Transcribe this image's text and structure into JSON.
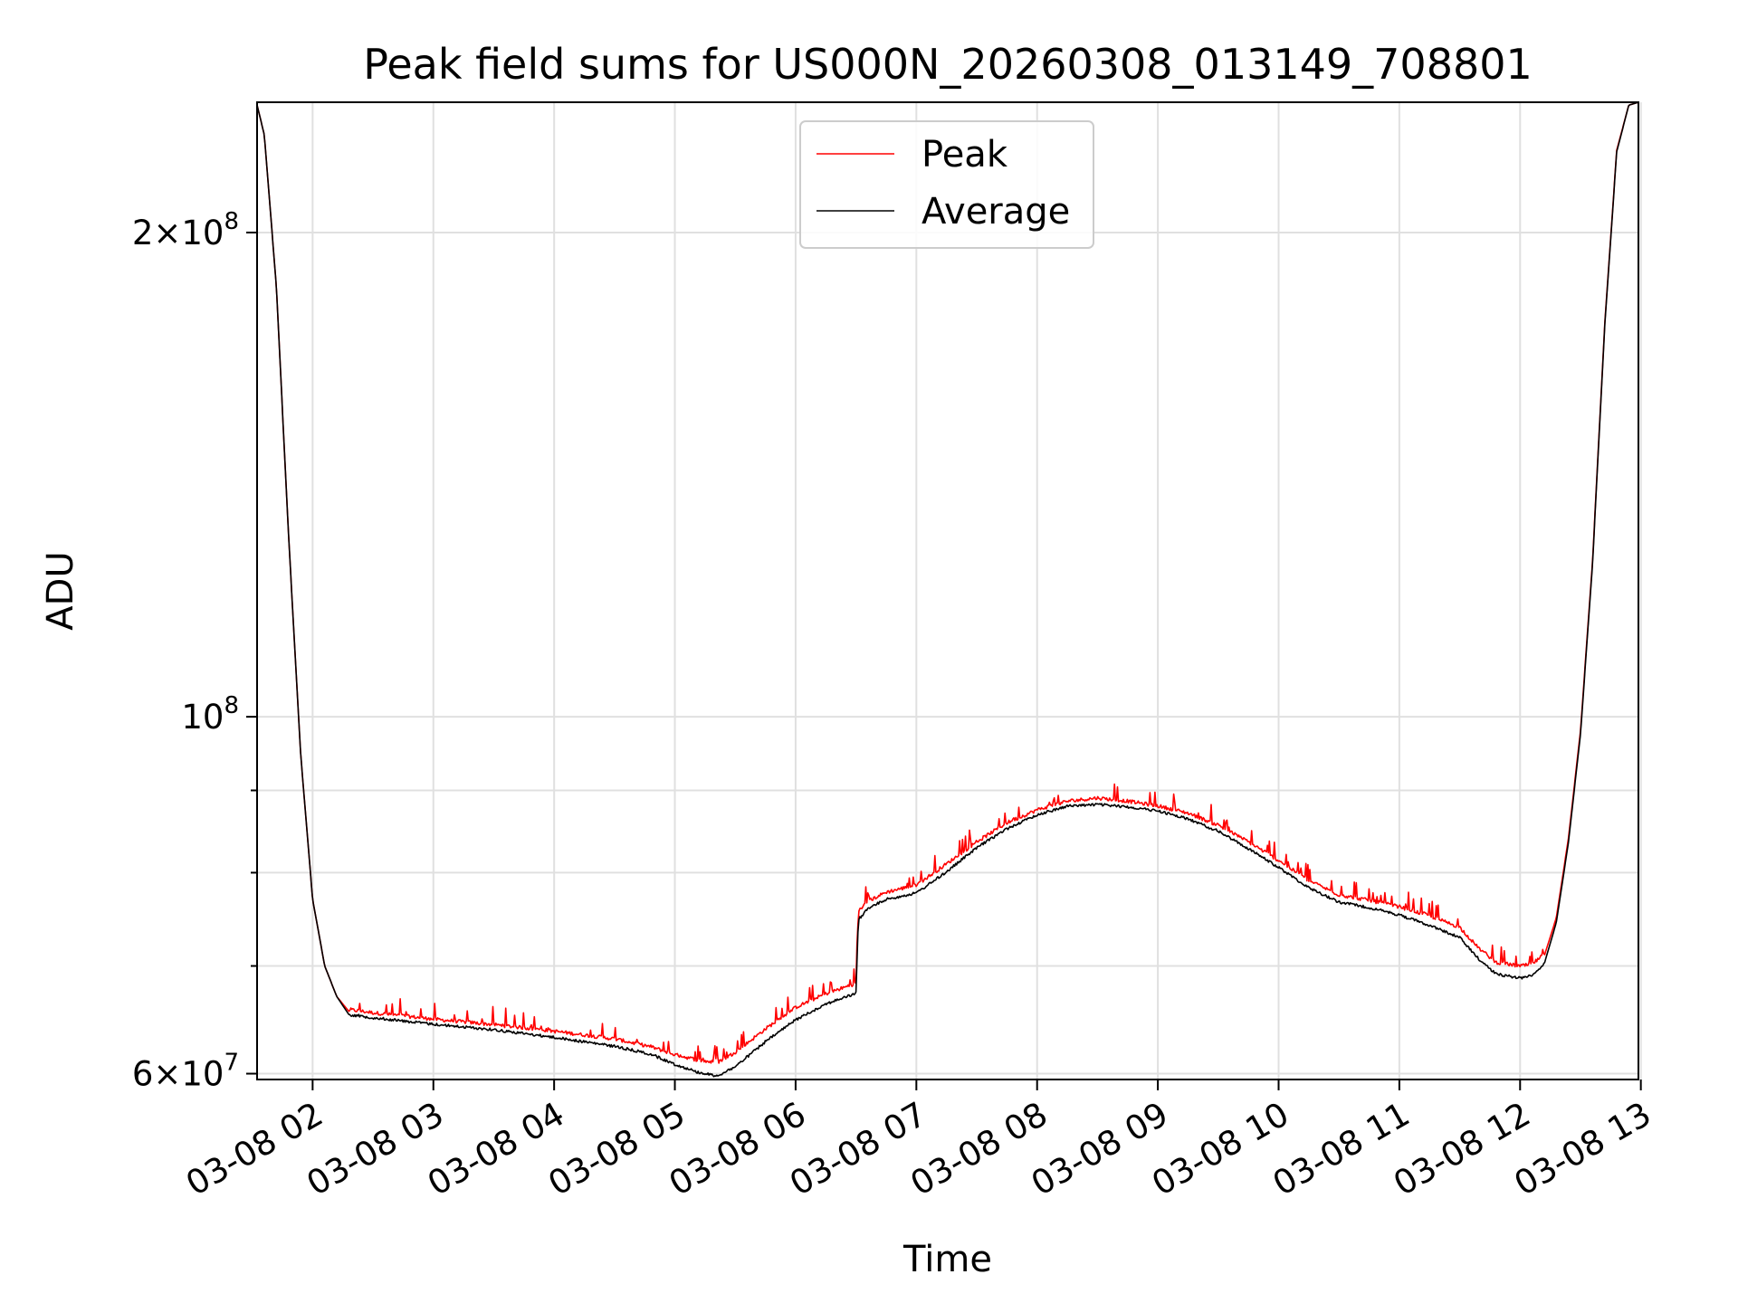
{
  "chart_data": {
    "type": "line",
    "title": "Peak field sums for US000N_20260308_013149_708801",
    "xlabel": "Time",
    "ylabel": "ADU",
    "yscale": "log",
    "ylim": [
      59500000,
      241000000
    ],
    "xlim": [
      1.54,
      12.98
    ],
    "grid": true,
    "legend_position": "top-center",
    "x_ticks": [
      {
        "value": 2,
        "label": "03-08 02"
      },
      {
        "value": 3,
        "label": "03-08 03"
      },
      {
        "value": 4,
        "label": "03-08 04"
      },
      {
        "value": 5,
        "label": "03-08 05"
      },
      {
        "value": 6,
        "label": "03-08 06"
      },
      {
        "value": 7,
        "label": "03-08 07"
      },
      {
        "value": 8,
        "label": "03-08 08"
      },
      {
        "value": 9,
        "label": "03-08 09"
      },
      {
        "value": 10,
        "label": "03-08 10"
      },
      {
        "value": 11,
        "label": "03-08 11"
      },
      {
        "value": 12,
        "label": "03-08 12"
      },
      {
        "value": 13,
        "label": "03-08 13"
      }
    ],
    "y_major_ticks": [
      {
        "value": 60000000,
        "mantissa": "6",
        "exponent": "7"
      },
      {
        "value": 100000000,
        "mantissa": "",
        "exponent": "8"
      },
      {
        "value": 200000000,
        "mantissa": "2",
        "exponent": "8"
      }
    ],
    "y_minor_gridlines": [
      70000000,
      80000000,
      90000000
    ],
    "series": [
      {
        "name": "Peak",
        "color": "#ff0000",
        "noisy": true,
        "x": [
          1.54,
          1.6,
          1.7,
          1.8,
          1.9,
          2.0,
          2.1,
          2.2,
          2.3,
          2.5,
          3.0,
          3.5,
          4.0,
          4.5,
          4.8,
          5.0,
          5.2,
          5.35,
          5.5,
          5.75,
          6.0,
          6.25,
          6.5,
          6.52,
          6.6,
          6.75,
          7.0,
          7.25,
          7.5,
          7.75,
          8.0,
          8.25,
          8.5,
          8.75,
          9.0,
          9.25,
          9.5,
          9.75,
          10.0,
          10.25,
          10.5,
          10.75,
          11.0,
          11.25,
          11.5,
          11.65,
          11.8,
          12.0,
          12.1,
          12.2,
          12.3,
          12.4,
          12.5,
          12.6,
          12.7,
          12.8,
          12.9,
          12.98
        ],
        "y": [
          240000000,
          230000000,
          185000000,
          130000000,
          95000000,
          77000000,
          70000000,
          67000000,
          65600000,
          65300000,
          64700000,
          64200000,
          63600000,
          62900000,
          62200000,
          61500000,
          61000000,
          60800000,
          61700000,
          63800000,
          65800000,
          67100000,
          68100000,
          75500000,
          76600000,
          77600000,
          78400000,
          80800000,
          83400000,
          85700000,
          87300000,
          88400000,
          88800000,
          88400000,
          87800000,
          86900000,
          85400000,
          83400000,
          81200000,
          78900000,
          77300000,
          76700000,
          76000000,
          75000000,
          73800000,
          71700000,
          70200000,
          69800000,
          70000000,
          71000000,
          75000000,
          84000000,
          98000000,
          125000000,
          175000000,
          225000000,
          240000000,
          241000000
        ]
      },
      {
        "name": "Average",
        "color": "#000000",
        "noisy": false,
        "x": [
          1.54,
          1.6,
          1.7,
          1.8,
          1.9,
          2.0,
          2.1,
          2.2,
          2.3,
          2.5,
          3.0,
          3.5,
          4.0,
          4.5,
          4.8,
          5.0,
          5.2,
          5.35,
          5.5,
          5.75,
          6.0,
          6.25,
          6.5,
          6.52,
          6.6,
          6.75,
          7.0,
          7.25,
          7.5,
          7.75,
          8.0,
          8.25,
          8.5,
          8.75,
          9.0,
          9.25,
          9.5,
          9.75,
          10.0,
          10.25,
          10.5,
          10.75,
          11.0,
          11.25,
          11.5,
          11.65,
          11.8,
          12.0,
          12.1,
          12.2,
          12.3,
          12.4,
          12.5,
          12.6,
          12.7,
          12.8,
          12.9,
          12.98
        ],
        "y": [
          240000000,
          230000000,
          185000000,
          130000000,
          95000000,
          77000000,
          70000000,
          67000000,
          65300000,
          65000000,
          64400000,
          63900000,
          63200000,
          62400000,
          61700000,
          60800000,
          60100000,
          59800000,
          60600000,
          62800000,
          64800000,
          66300000,
          67300000,
          74800000,
          76000000,
          77000000,
          77700000,
          80100000,
          82900000,
          85200000,
          86900000,
          88000000,
          88200000,
          87900000,
          87400000,
          86400000,
          84900000,
          82800000,
          80600000,
          78300000,
          76700000,
          76100000,
          75300000,
          74200000,
          72900000,
          70800000,
          69200000,
          68800000,
          69100000,
          70200000,
          74500000,
          83500000,
          97500000,
          124500000,
          174500000,
          224500000,
          240000000,
          241000000
        ]
      }
    ]
  }
}
